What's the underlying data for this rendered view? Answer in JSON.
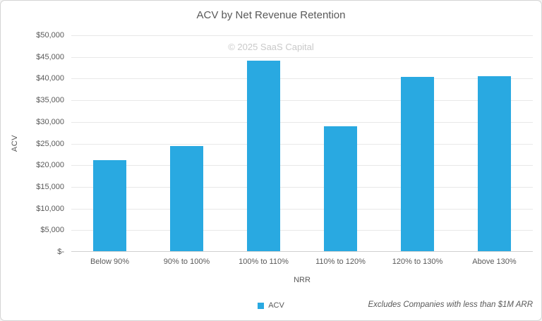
{
  "watermark": "© 2025 SaaS Capital",
  "footnote": "Excludes Companies with less than $1M ARR",
  "chart_data": {
    "type": "bar",
    "title": "ACV by Net Revenue Retention",
    "categories": [
      "Below 90%",
      "90% to 100%",
      "100% to 110%",
      "110% to 120%",
      "120% to 130%",
      "Above 130%"
    ],
    "values": [
      21000,
      24300,
      44100,
      28900,
      40300,
      40500
    ],
    "series_name": "ACV",
    "xlabel": "NRR",
    "ylabel": "ACV",
    "ylim": [
      0,
      50000
    ],
    "ytick_step": 5000,
    "ytick_labels": [
      "$-",
      "$5,000",
      "$10,000",
      "$15,000",
      "$20,000",
      "$25,000",
      "$30,000",
      "$35,000",
      "$40,000",
      "$45,000",
      "$50,000"
    ],
    "grid": true,
    "legend_position": "bottom"
  },
  "colors": {
    "bar": "#29a9e1",
    "title_text": "#595959",
    "axis_text": "#595959",
    "watermark_text": "#c9c9c9",
    "gridline": "#e8e8e8",
    "axis_line": "#d0d0d0",
    "frame_border": "#d4d4d4"
  }
}
